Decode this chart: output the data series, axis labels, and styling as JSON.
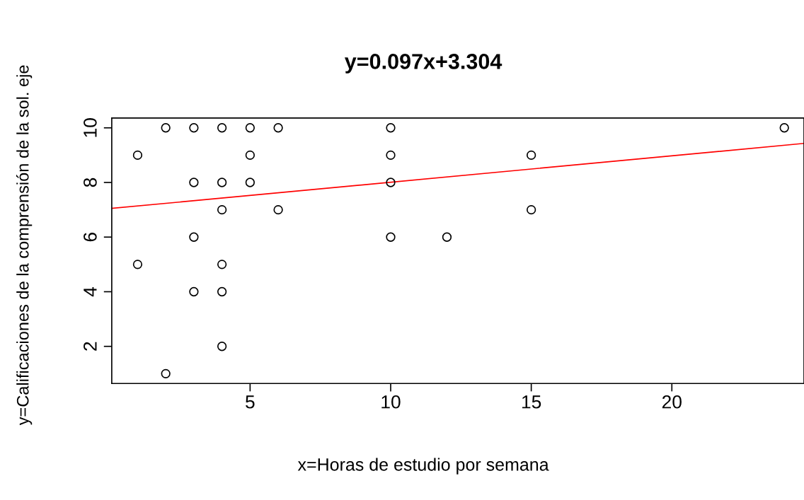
{
  "chart_data": {
    "type": "scatter",
    "title": "y=0.097x+3.304",
    "xlabel": "x=Horas de estudio por semana",
    "ylabel": "y=Calificaciones de la comprensión de la sol. eje",
    "xlim": [
      0.08,
      24.7
    ],
    "ylim": [
      0.64,
      10.36
    ],
    "xticks": [
      5,
      10,
      15,
      20
    ],
    "yticks": [
      2,
      4,
      6,
      8,
      10
    ],
    "grid": false,
    "series": [
      {
        "color": "#000000",
        "marker": "circle",
        "x": [
          1,
          1,
          2,
          2,
          3,
          3,
          3,
          3,
          4,
          4,
          4,
          4,
          4,
          4,
          5,
          5,
          5,
          6,
          6,
          10,
          10,
          10,
          10,
          12,
          15,
          15,
          24
        ],
        "values": [
          9,
          5,
          10,
          1,
          10,
          8,
          6,
          4,
          10,
          8,
          7,
          5,
          4,
          2,
          10,
          9,
          8,
          10,
          7,
          10,
          9,
          8,
          6,
          6,
          9,
          7,
          10
        ]
      },
      {
        "type": "line",
        "color": "#ff0000",
        "x": [
          0.08,
          24.7
        ],
        "values": [
          7.05,
          9.43
        ]
      }
    ]
  }
}
